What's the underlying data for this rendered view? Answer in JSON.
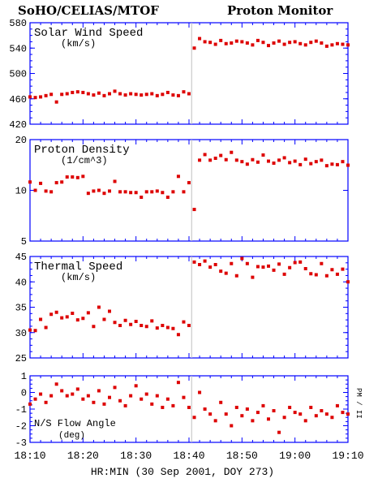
{
  "header": {
    "left_title": "SoHO/CELIAS/MTOF",
    "right_title": "Proton Monitor"
  },
  "xaxis": {
    "label": "HR:MIN (30 Sep 2001, DOY 273)",
    "ticks": [
      "18:10",
      "18:20",
      "18:30",
      "18:40",
      "18:50",
      "19:00",
      "19:10"
    ],
    "range_min": [
      0,
      60
    ]
  },
  "chart_data": [
    {
      "type": "scatter",
      "title": "Solar Wind Speed",
      "unit": "(km/s)",
      "ylim": [
        420,
        580
      ],
      "yticks": [
        "580",
        "540",
        "500",
        "460",
        "420"
      ],
      "series": [
        {
          "x": [
            0,
            1,
            2,
            3,
            4,
            5,
            6,
            7,
            8,
            9,
            10,
            11,
            12,
            13,
            14,
            15,
            16,
            17,
            18,
            19,
            20,
            21,
            22,
            23,
            24,
            25,
            26,
            27,
            28,
            29,
            30,
            31,
            32,
            33,
            34,
            35,
            36,
            37,
            38,
            39,
            40,
            41,
            42,
            43,
            44,
            45,
            46,
            47,
            48,
            49,
            50,
            51,
            52,
            53,
            54,
            55,
            56,
            57,
            58,
            59,
            60
          ],
          "y": [
            463,
            462,
            463,
            465,
            467,
            455,
            467,
            468,
            470,
            471,
            470,
            468,
            466,
            469,
            465,
            468,
            472,
            468,
            466,
            468,
            467,
            466,
            467,
            468,
            465,
            467,
            470,
            466,
            465,
            471,
            468,
            540,
            555,
            550,
            549,
            546,
            552,
            547,
            548,
            551,
            550,
            548,
            545,
            552,
            549,
            544,
            548,
            551,
            546,
            549,
            550,
            547,
            545,
            549,
            551,
            548,
            543,
            545,
            547,
            546,
            545
          ]
        }
      ]
    },
    {
      "type": "scatter",
      "title": "Proton Density",
      "unit": "(1/cm^3)",
      "ylim": [
        5,
        20
      ],
      "ylog": true,
      "yticks": [
        "20",
        "10",
        "5"
      ],
      "series": [
        {
          "x": [
            0,
            1,
            2,
            3,
            4,
            5,
            6,
            7,
            8,
            9,
            10,
            11,
            12,
            13,
            14,
            15,
            16,
            17,
            18,
            19,
            20,
            21,
            22,
            23,
            24,
            25,
            26,
            27,
            28,
            29,
            30,
            31,
            32,
            33,
            34,
            35,
            36,
            37,
            38,
            39,
            40,
            41,
            42,
            43,
            44,
            45,
            46,
            47,
            48,
            49,
            50,
            51,
            52,
            53,
            54,
            55,
            56,
            57,
            58,
            59,
            60
          ],
          "y": [
            11.2,
            10,
            11,
            9.9,
            9.8,
            11.1,
            11.2,
            12,
            12,
            11.9,
            12.1,
            9.6,
            9.9,
            10,
            9.6,
            9.9,
            11.3,
            9.8,
            9.8,
            9.7,
            9.7,
            9.1,
            9.8,
            9.8,
            9.9,
            9.7,
            9.1,
            9.8,
            12.1,
            9.8,
            11.1,
            7.7,
            15.1,
            16.3,
            15.1,
            15.5,
            16.1,
            15.2,
            16.8,
            15.1,
            14.8,
            14.3,
            15.2,
            14.7,
            16.2,
            14.9,
            14.5,
            15.1,
            15.6,
            14.6,
            14.9,
            14.2,
            15.3,
            14.4,
            14.8,
            15.1,
            14.0,
            14.3,
            14.2,
            14.8,
            14.1
          ]
        }
      ]
    },
    {
      "type": "scatter",
      "title": "Thermal Speed",
      "unit": "(km/s)",
      "ylim": [
        25,
        45
      ],
      "yticks": [
        "45",
        "40",
        "35",
        "30",
        "25"
      ],
      "series": [
        {
          "x": [
            0,
            1,
            2,
            3,
            4,
            5,
            6,
            7,
            8,
            9,
            10,
            11,
            12,
            13,
            14,
            15,
            16,
            17,
            18,
            19,
            20,
            21,
            22,
            23,
            24,
            25,
            26,
            27,
            28,
            29,
            30,
            31,
            32,
            33,
            34,
            35,
            36,
            37,
            38,
            39,
            40,
            41,
            42,
            43,
            44,
            45,
            46,
            47,
            48,
            49,
            50,
            51,
            52,
            53,
            54,
            55,
            56,
            57,
            58,
            59,
            60
          ],
          "y": [
            30.5,
            30.4,
            32.6,
            31.0,
            33.6,
            34.0,
            32.9,
            33.1,
            33.8,
            32.5,
            32.8,
            33.9,
            31.2,
            35.0,
            32.6,
            34.2,
            32.0,
            31.4,
            32.4,
            31.6,
            32.2,
            31.4,
            31.2,
            32.3,
            30.9,
            31.4,
            31.0,
            30.8,
            29.6,
            32.1,
            31.4,
            43.9,
            43.4,
            44.1,
            42.9,
            43.4,
            42.1,
            41.7,
            43.6,
            41.2,
            44.6,
            43.6,
            40.9,
            43.0,
            42.9,
            43.1,
            42.3,
            43.5,
            41.5,
            42.8,
            43.8,
            43.9,
            42.6,
            41.6,
            41.4,
            43.6,
            41.2,
            42.4,
            41.5,
            42.5,
            40.0
          ]
        }
      ]
    },
    {
      "type": "scatter",
      "title": "N/S Flow Angle",
      "unit": "(deg)",
      "ylim": [
        -3,
        1
      ],
      "yticks": [
        "1",
        "0",
        "-1",
        "-2",
        "-3"
      ],
      "right_label": "PM / II",
      "series": [
        {
          "x": [
            0,
            1,
            2,
            3,
            4,
            5,
            6,
            7,
            8,
            9,
            10,
            11,
            12,
            13,
            14,
            15,
            16,
            17,
            18,
            19,
            20,
            21,
            22,
            23,
            24,
            25,
            26,
            27,
            28,
            29,
            30,
            31,
            32,
            33,
            34,
            35,
            36,
            37,
            38,
            39,
            40,
            41,
            42,
            43,
            44,
            45,
            46,
            47,
            48,
            49,
            50,
            51,
            52,
            53,
            54,
            55,
            56,
            57,
            58,
            59,
            60
          ],
          "y": [
            -0.7,
            -0.4,
            -0.1,
            -0.6,
            -0.2,
            0.5,
            0.1,
            -0.2,
            -0.1,
            0.2,
            -0.4,
            -0.2,
            -0.6,
            0.1,
            -0.7,
            -0.3,
            0.3,
            -0.5,
            -0.8,
            -0.2,
            0.4,
            -0.4,
            -0.1,
            -0.7,
            -0.2,
            -0.9,
            -0.4,
            -0.8,
            0.6,
            -0.3,
            -0.9,
            -1.5,
            0.0,
            -1.0,
            -1.3,
            -1.7,
            -0.6,
            -1.3,
            -2.0,
            -0.9,
            -1.4,
            -1.0,
            -1.7,
            -1.2,
            -0.8,
            -1.6,
            -1.1,
            -2.4,
            -1.5,
            -0.9,
            -1.2,
            -1.3,
            -1.7,
            -0.9,
            -1.4,
            -1.1,
            -1.3,
            -1.5,
            -0.8,
            -1.2,
            -1.3
          ]
        }
      ]
    }
  ],
  "colors": {
    "axis": "#0000ff",
    "points": "#dd0000",
    "divider": "#c0c0c0"
  }
}
